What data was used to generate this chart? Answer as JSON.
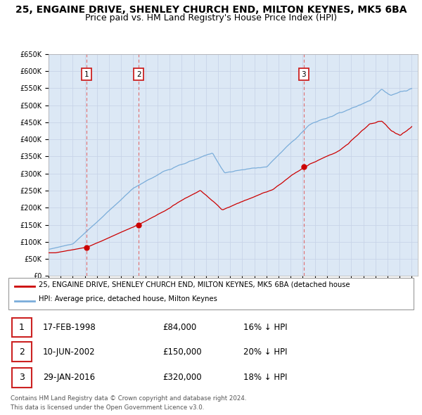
{
  "title": "25, ENGAINE DRIVE, SHENLEY CHURCH END, MILTON KEYNES, MK5 6BA",
  "subtitle": "Price paid vs. HM Land Registry's House Price Index (HPI)",
  "title_fontsize": 10,
  "subtitle_fontsize": 9,
  "ylim": [
    0,
    650000
  ],
  "yticks": [
    0,
    50000,
    100000,
    150000,
    200000,
    250000,
    300000,
    350000,
    400000,
    450000,
    500000,
    550000,
    600000,
    650000
  ],
  "ytick_labels": [
    "£0",
    "£50K",
    "£100K",
    "£150K",
    "£200K",
    "£250K",
    "£300K",
    "£350K",
    "£400K",
    "£450K",
    "£500K",
    "£550K",
    "£600K",
    "£650K"
  ],
  "xlim_start": 1995.0,
  "xlim_end": 2025.5,
  "xticks": [
    1995,
    1996,
    1997,
    1998,
    1999,
    2000,
    2001,
    2002,
    2003,
    2004,
    2005,
    2006,
    2007,
    2008,
    2009,
    2010,
    2011,
    2012,
    2013,
    2014,
    2015,
    2016,
    2017,
    2018,
    2019,
    2020,
    2021,
    2022,
    2023,
    2024,
    2025
  ],
  "transactions": [
    {
      "num": 1,
      "date": "17-FEB-1998",
      "price": 84000,
      "pct": "16%",
      "dir": "↓",
      "year": 1998.125
    },
    {
      "num": 2,
      "date": "10-JUN-2002",
      "price": 150000,
      "pct": "20%",
      "dir": "↓",
      "year": 2002.44
    },
    {
      "num": 3,
      "date": "29-JAN-2016",
      "price": 320000,
      "pct": "18%",
      "dir": "↓",
      "year": 2016.07
    }
  ],
  "red_color": "#cc0000",
  "blue_color": "#7aadda",
  "legend_label_red": "25, ENGAINE DRIVE, SHENLEY CHURCH END, MILTON KEYNES, MK5 6BA (detached house",
  "legend_label_blue": "HPI: Average price, detached house, Milton Keynes",
  "footer1": "Contains HM Land Registry data © Crown copyright and database right 2024.",
  "footer2": "This data is licensed under the Open Government Licence v3.0.",
  "bg_color": "#ffffff",
  "grid_color": "#c8d4e8",
  "plot_bg": "#dce8f5"
}
